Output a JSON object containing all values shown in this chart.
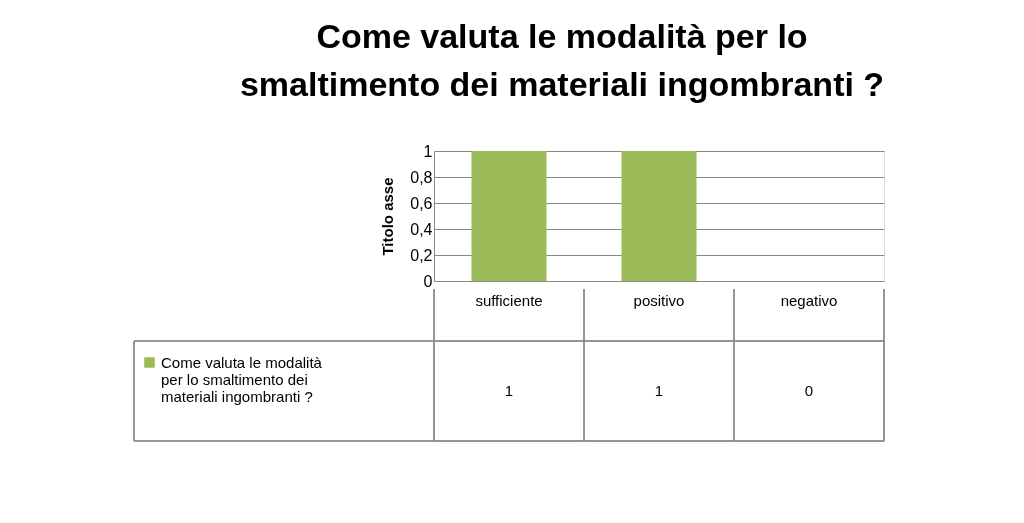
{
  "chart_data": {
    "type": "bar",
    "title": "Come valuta le modalità per lo smaltimento dei materiali ingombranti ?",
    "ylabel": "Titolo asse",
    "categories": [
      "sufficiente",
      "positivo",
      "negativo"
    ],
    "series": [
      {
        "name": "Come valuta le modalità per lo smaltimento dei materiali ingombranti ?",
        "color": "#9bbb59",
        "values": [
          1,
          1,
          0
        ]
      }
    ],
    "ylim": [
      0,
      1
    ],
    "yticks": [
      {
        "value": 0,
        "label": "0"
      },
      {
        "value": 0.2,
        "label": "0,2"
      },
      {
        "value": 0.4,
        "label": "0,4"
      },
      {
        "value": 0.6,
        "label": "0,6"
      },
      {
        "value": 0.8,
        "label": "0,8"
      },
      {
        "value": 1,
        "label": "1"
      }
    ],
    "grid": "y",
    "data_labels": true,
    "legend": "bottom left"
  }
}
